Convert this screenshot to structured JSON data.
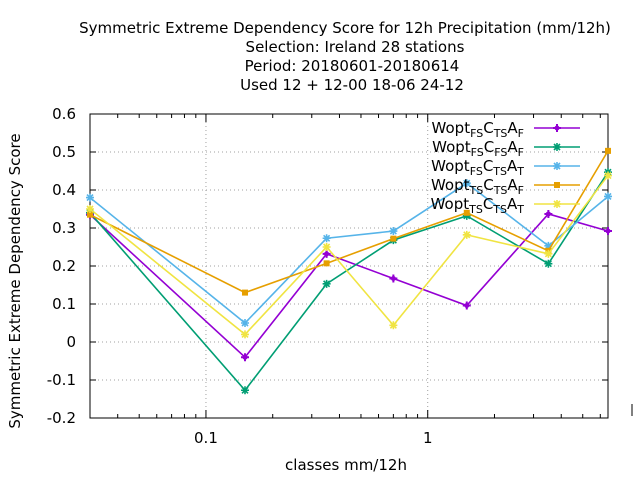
{
  "chart_data": {
    "type": "line",
    "title_lines": [
      "Symmetric Extreme Dependency Score  for 12h Precipitation (mm/12h)",
      "Selection: Ireland     28 stations",
      "Period: 20180601-20180614",
      "Used  12 + 12-00 18-06 24-12"
    ],
    "xlabel": "classes mm/12h",
    "ylabel": "Symmetric Extreme Dependency Score",
    "x_scale": "log",
    "xlim": [
      0.03,
      6.5
    ],
    "ylim": [
      -0.2,
      0.6
    ],
    "x_ticks": [
      {
        "value": 0.1,
        "label": "0.1"
      },
      {
        "value": 1,
        "label": "1"
      }
    ],
    "y_ticks": [
      {
        "value": 0.6,
        "label": "0.6"
      },
      {
        "value": 0.5,
        "label": "0.5"
      },
      {
        "value": 0.4,
        "label": "0.4"
      },
      {
        "value": 0.3,
        "label": "0.3"
      },
      {
        "value": 0.2,
        "label": "0.2"
      },
      {
        "value": 0.1,
        "label": "0.1"
      },
      {
        "value": 0,
        "label": "0"
      },
      {
        "value": -0.1,
        "label": "-0.1"
      },
      {
        "value": -0.2,
        "label": "-0.2"
      }
    ],
    "grid": true,
    "legend_placement": "top-right",
    "x": [
      0.03,
      0.15,
      0.35,
      0.7,
      1.5,
      3.5,
      6.5
    ],
    "series": [
      {
        "name": "Wopt FS C TS A F",
        "legend": [
          [
            "Wopt",
            ""
          ],
          [
            "FS",
            "sub"
          ],
          [
            "C",
            ""
          ],
          [
            "TS",
            "sub"
          ],
          [
            "A",
            ""
          ],
          [
            "F",
            "sub"
          ]
        ],
        "color": "#9400d3",
        "marker": "plus",
        "values": [
          0.335,
          -0.04,
          0.232,
          0.167,
          0.096,
          0.337,
          0.292
        ]
      },
      {
        "name": "Wopt FS C FS A F",
        "legend": [
          [
            "Wopt",
            ""
          ],
          [
            "FS",
            "sub"
          ],
          [
            "C",
            ""
          ],
          [
            "FS",
            "sub"
          ],
          [
            "A",
            ""
          ],
          [
            "F",
            "sub"
          ]
        ],
        "color": "#009e73",
        "marker": "star",
        "values": [
          0.34,
          -0.127,
          0.153,
          0.268,
          0.332,
          0.206,
          0.447
        ]
      },
      {
        "name": "Wopt FS C TS A T",
        "legend": [
          [
            "Wopt",
            ""
          ],
          [
            "FS",
            "sub"
          ],
          [
            "C",
            ""
          ],
          [
            "TS",
            "sub"
          ],
          [
            "A",
            ""
          ],
          [
            "T",
            "sub"
          ]
        ],
        "color": "#56b4e9",
        "marker": "star",
        "values": [
          0.38,
          0.05,
          0.273,
          0.292,
          0.418,
          0.253,
          0.383
        ]
      },
      {
        "name": "Wopt TS C TS A F",
        "legend": [
          [
            "Wopt",
            ""
          ],
          [
            "TS",
            "sub"
          ],
          [
            "C",
            ""
          ],
          [
            "TS",
            "sub"
          ],
          [
            "A",
            ""
          ],
          [
            "F",
            "sub"
          ]
        ],
        "color": "#e69f00",
        "marker": "square",
        "values": [
          0.335,
          0.13,
          0.207,
          0.272,
          0.34,
          0.24,
          0.503
        ]
      },
      {
        "name": "Wopt TS C TS A T",
        "legend": [
          [
            "Wopt",
            ""
          ],
          [
            "TS",
            "sub"
          ],
          [
            "C",
            ""
          ],
          [
            "TS",
            "sub"
          ],
          [
            "A",
            ""
          ],
          [
            "T",
            "sub"
          ]
        ],
        "color": "#f0e442",
        "marker": "star",
        "values": [
          0.35,
          0.02,
          0.25,
          0.044,
          0.282,
          0.232,
          0.438
        ]
      }
    ]
  }
}
